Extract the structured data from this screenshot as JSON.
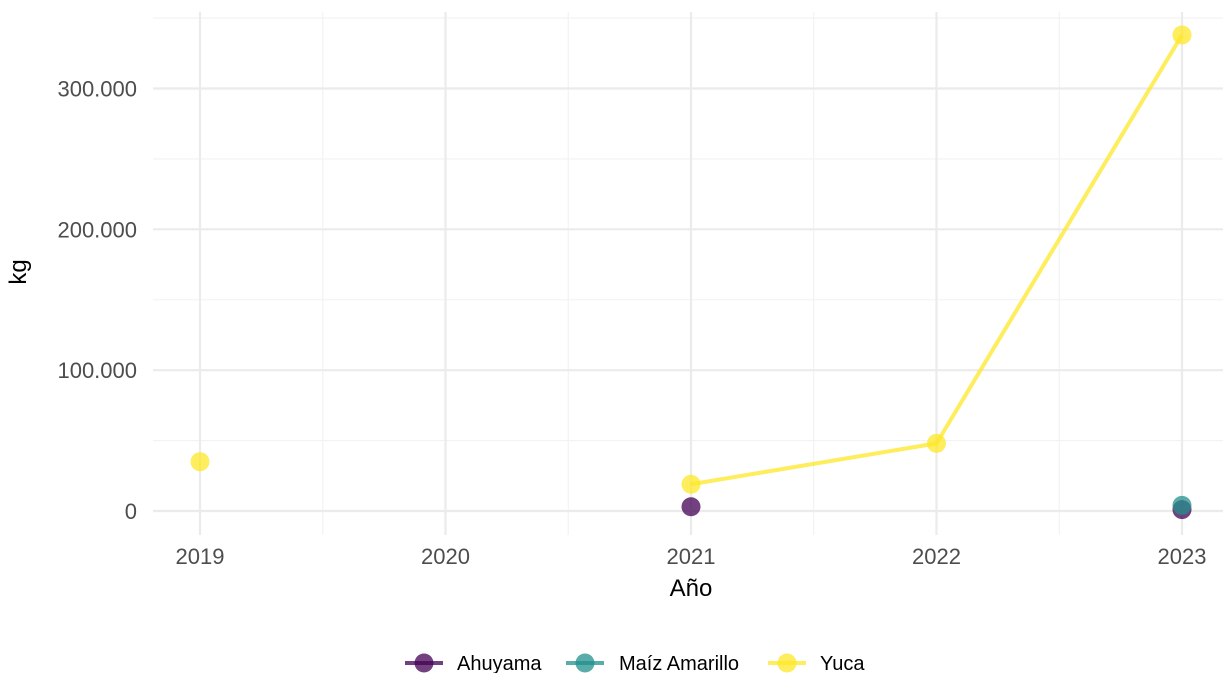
{
  "chart_data": {
    "type": "line",
    "title": "",
    "xlabel": "Año",
    "ylabel": "kg",
    "x_categories": [
      "2019",
      "2020",
      "2021",
      "2022",
      "2023"
    ],
    "y_ticks": [
      {
        "value": 0,
        "label": "0"
      },
      {
        "value": 100000,
        "label": "100.000"
      },
      {
        "value": 200000,
        "label": "200.000"
      },
      {
        "value": 300000,
        "label": "300.000"
      }
    ],
    "ylim": [
      -12000,
      352000
    ],
    "grid": true,
    "legend_position": "bottom",
    "series": [
      {
        "name": "Ahuyama",
        "color": "#440154",
        "points": [
          {
            "x": "2021",
            "y": 3000
          },
          {
            "x": "2023",
            "y": 1000
          }
        ],
        "line_segments": []
      },
      {
        "name": "Maíz Amarillo",
        "color": "#21908C",
        "points": [
          {
            "x": "2023",
            "y": 4000
          }
        ],
        "line_segments": []
      },
      {
        "name": "Yuca",
        "color": "#FDE725",
        "points": [
          {
            "x": "2019",
            "y": 35000
          },
          {
            "x": "2021",
            "y": 19000
          },
          {
            "x": "2022",
            "y": 48000
          },
          {
            "x": "2023",
            "y": 338000
          }
        ],
        "line_segments": [
          [
            "2021",
            "2022",
            "2023"
          ]
        ]
      }
    ]
  }
}
